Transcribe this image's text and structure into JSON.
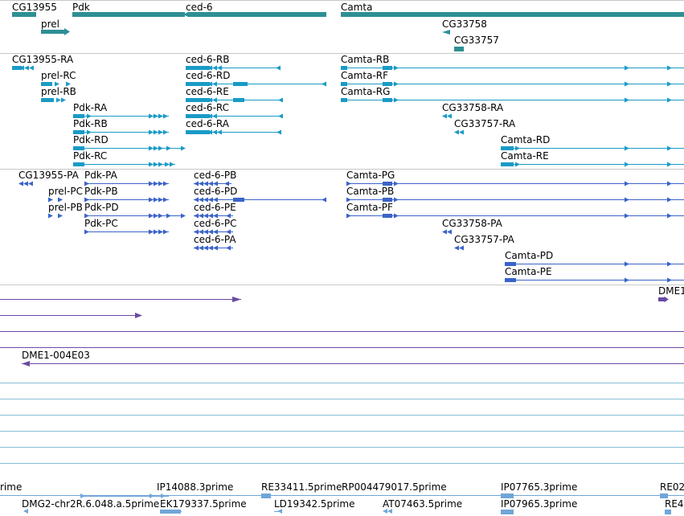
{
  "colors": {
    "gene": "#2e8f94",
    "transcript_ra": "#1a9bc6",
    "transcript_pa": "#3b63c8",
    "cdna": "#6b4aa4",
    "est": "#6fa6d8",
    "row_line": "#86bfd6",
    "separator": "#c8c8c8"
  },
  "genes_track": {
    "labels": [
      "CG13955",
      "Pdk",
      "ced-6",
      "Camta",
      "prel",
      "CG33758",
      "CG33757"
    ]
  },
  "mrna_track": {
    "labels": [
      "CG13955-RA",
      "ced-6-RB",
      "Camta-RB",
      "prel-RC",
      "ced-6-RD",
      "Camta-RF",
      "prel-RB",
      "ced-6-RE",
      "Camta-RG",
      "Pdk-RA",
      "ced-6-RC",
      "CG33758-RA",
      "Pdk-RB",
      "ced-6-RA",
      "CG33757-RA",
      "Pdk-RD",
      "Camta-RD",
      "Pdk-RC",
      "Camta-RE"
    ]
  },
  "protein_track": {
    "labels": [
      "CG13955-PA",
      "Pdk-PA",
      "ced-6-PB",
      "Camta-PG",
      "prel-PC",
      "Pdk-PB",
      "ced-6-PD",
      "Camta-PB",
      "prel-PB",
      "Pdk-PD",
      "ced-6-PE",
      "Camta-PF",
      "Pdk-PC",
      "ced-6-PC",
      "CG33758-PA",
      "ced-6-PA",
      "CG33757-PA",
      "Camta-PD",
      "Camta-PE"
    ]
  },
  "cdna_track": {
    "labels": [
      "DME1",
      "DME1-004E03"
    ]
  },
  "est_track": {
    "labels": [
      "rime",
      "IP14088.3prime",
      "RE33411.5prime",
      "RP004479017.5prime",
      "IP07765.3prime",
      "RE02",
      "DMG2-chr2R.6.048.a.5prime",
      "EK179337.5prime",
      "LD19342.5prime",
      "AT07463.5prime",
      "IP07965.3prime",
      "RE4"
    ]
  }
}
